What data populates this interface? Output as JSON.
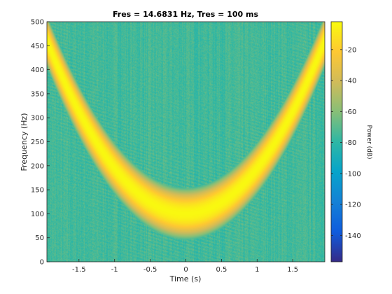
{
  "chart_data": {
    "type": "heatmap",
    "title": "Fres = 14.6831 Hz, Tres = 100 ms",
    "xlabel": "Time (s)",
    "ylabel": "Frequency (Hz)",
    "colorbar_label": "Power (dB)",
    "xlim": [
      -1.95,
      1.95
    ],
    "ylim": [
      0,
      500
    ],
    "clim": [
      -157,
      -2
    ],
    "x_ticks": [
      -1.5,
      -1,
      -0.5,
      0,
      0.5,
      1,
      1.5
    ],
    "x_tick_labels": [
      "-1.5",
      "-1",
      "-0.5",
      "0",
      "0.5",
      "1",
      "1.5"
    ],
    "y_ticks": [
      0,
      50,
      100,
      150,
      200,
      250,
      300,
      350,
      400,
      450,
      500
    ],
    "y_tick_labels": [
      "0",
      "50",
      "100",
      "150",
      "200",
      "250",
      "300",
      "350",
      "400",
      "450",
      "500"
    ],
    "colorbar_ticks": [
      -20,
      -40,
      -60,
      -80,
      -100,
      -120,
      -140
    ],
    "colorbar_tick_labels": [
      "-20",
      "-40",
      "-60",
      "-80",
      "-100",
      "-120",
      "-140"
    ],
    "colormap": "parula",
    "ridge": {
      "description_values": "quadratic chirp: f(t) = f0 + k*t^2",
      "f0_hz": 100,
      "f_at_t_minus_1_95": 455,
      "f_at_t_plus_1_95": 460,
      "peak_power_db": -3,
      "half_width_hz": 22
    },
    "background_power_db": -75,
    "grid": false
  },
  "colors": {
    "parula_stops": [
      "#352a87",
      "#0f5cdd",
      "#1481d6",
      "#06a4ca",
      "#2eb7a4",
      "#87bf77",
      "#d1bb59",
      "#fec832",
      "#f9fb0e"
    ]
  }
}
